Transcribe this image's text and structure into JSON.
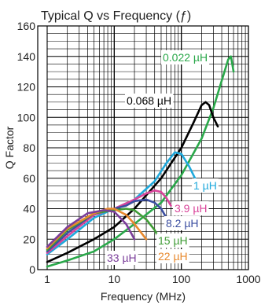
{
  "chart_data": {
    "type": "line",
    "title": "Typical Q vs Frequency (ƒ)",
    "xlabel": "Frequency (MHz)",
    "ylabel": "Q Factor",
    "x_scale": "log",
    "xlim": [
      1,
      1000
    ],
    "ylim": [
      0,
      160
    ],
    "grid": true,
    "x_ticks": [
      {
        "value": 1,
        "label": "1"
      },
      {
        "value": 10,
        "label": "10"
      },
      {
        "value": 100,
        "label": "100"
      },
      {
        "value": 1000,
        "label": "1000"
      }
    ],
    "y_ticks": [
      0,
      20,
      40,
      60,
      80,
      100,
      120,
      140,
      160
    ],
    "series": [
      {
        "name": "0.022 µH",
        "color": "#2aa84a",
        "points": [
          [
            1,
            2
          ],
          [
            2,
            6
          ],
          [
            5,
            12
          ],
          [
            10,
            20
          ],
          [
            20,
            30
          ],
          [
            50,
            44
          ],
          [
            100,
            62
          ],
          [
            200,
            86
          ],
          [
            300,
            106
          ],
          [
            400,
            124
          ],
          [
            500,
            138
          ],
          [
            550,
            140
          ],
          [
            600,
            130
          ]
        ]
      },
      {
        "name": "0.068 µH",
        "color": "#000000",
        "points": [
          [
            1,
            5
          ],
          [
            2,
            11
          ],
          [
            5,
            20
          ],
          [
            10,
            28
          ],
          [
            20,
            40
          ],
          [
            50,
            60
          ],
          [
            100,
            80
          ],
          [
            150,
            96
          ],
          [
            200,
            108
          ],
          [
            230,
            110
          ],
          [
            260,
            108
          ],
          [
            300,
            100
          ],
          [
            350,
            94
          ]
        ]
      },
      {
        "name": "1 µH",
        "color": "#1fa9dc",
        "points": [
          [
            1,
            10
          ],
          [
            2,
            20
          ],
          [
            5,
            34
          ],
          [
            10,
            40
          ],
          [
            20,
            46
          ],
          [
            40,
            58
          ],
          [
            60,
            70
          ],
          [
            80,
            77
          ],
          [
            100,
            76
          ],
          [
            130,
            68
          ],
          [
            160,
            60
          ],
          [
            180,
            56
          ]
        ]
      },
      {
        "name": "3.9 µH",
        "color": "#d9449a",
        "points": [
          [
            1,
            11
          ],
          [
            2,
            22
          ],
          [
            5,
            36
          ],
          [
            10,
            40
          ],
          [
            20,
            46
          ],
          [
            30,
            50
          ],
          [
            40,
            52
          ],
          [
            50,
            51
          ],
          [
            60,
            47
          ],
          [
            70,
            42
          ]
        ]
      },
      {
        "name": "8.2 µH",
        "color": "#3b4ea0",
        "points": [
          [
            1,
            12
          ],
          [
            2,
            24
          ],
          [
            5,
            37
          ],
          [
            10,
            40
          ],
          [
            15,
            42
          ],
          [
            20,
            45
          ],
          [
            30,
            46
          ],
          [
            40,
            44
          ],
          [
            50,
            40
          ],
          [
            60,
            34
          ]
        ]
      },
      {
        "name": "15 µH",
        "color": "#3f9b35",
        "points": [
          [
            1,
            13
          ],
          [
            2,
            26
          ],
          [
            5,
            37
          ],
          [
            10,
            39
          ],
          [
            15,
            40
          ],
          [
            20,
            39
          ],
          [
            30,
            33
          ],
          [
            40,
            26
          ],
          [
            50,
            18
          ]
        ]
      },
      {
        "name": "22 µH",
        "color": "#e8892d",
        "points": [
          [
            1,
            14
          ],
          [
            2,
            27
          ],
          [
            5,
            37
          ],
          [
            8,
            40
          ],
          [
            10,
            40
          ],
          [
            15,
            36
          ],
          [
            20,
            30
          ],
          [
            30,
            20
          ]
        ]
      },
      {
        "name": "33 µH",
        "color": "#7a3d9a",
        "points": [
          [
            1,
            15
          ],
          [
            2,
            28
          ],
          [
            4,
            37
          ],
          [
            7,
            39
          ],
          [
            10,
            38
          ],
          [
            15,
            30
          ],
          [
            20,
            20
          ]
        ]
      }
    ]
  }
}
